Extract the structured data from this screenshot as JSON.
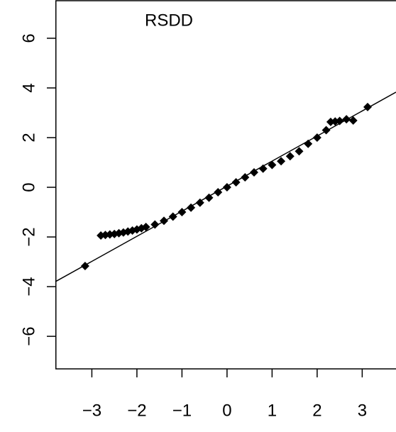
{
  "chart_data": {
    "type": "qq",
    "title": "RSDD",
    "color": "#000000",
    "x": [
      -3.15,
      -2.8,
      -2.7,
      -2.6,
      -2.5,
      -2.4,
      -2.3,
      -2.2,
      -2.1,
      -2.0,
      -1.9,
      -1.8,
      -1.6,
      -1.4,
      -1.2,
      -1.0,
      -0.8,
      -0.6,
      -0.4,
      -0.2,
      0,
      0.2,
      0.4,
      0.6,
      0.8,
      1.0,
      1.2,
      1.4,
      1.6,
      1.8,
      2.0,
      2.2,
      2.3,
      2.4,
      2.5,
      2.65,
      2.8,
      3.12
    ],
    "values": [
      -3.17,
      -1.94,
      -1.92,
      -1.9,
      -1.88,
      -1.85,
      -1.82,
      -1.78,
      -1.74,
      -1.7,
      -1.65,
      -1.6,
      -1.5,
      -1.35,
      -1.18,
      -1.0,
      -0.82,
      -0.62,
      -0.42,
      -0.2,
      0,
      0.2,
      0.4,
      0.6,
      0.75,
      0.9,
      1.05,
      1.25,
      1.45,
      1.75,
      2.0,
      2.3,
      2.63,
      2.65,
      2.67,
      2.74,
      2.69,
      3.23
    ],
    "reference_line": {
      "x": [
        -3.81,
        3.75
      ],
      "y": [
        -3.8,
        3.83
      ]
    },
    "xlim": [
      -3.81,
      3.75
    ],
    "ylim": [
      -7.31,
      7.54
    ],
    "xticks": [
      {
        "value": -3,
        "label": "−3"
      },
      {
        "value": -2,
        "label": "−2"
      },
      {
        "value": -1,
        "label": "−1"
      },
      0,
      1,
      2,
      3
    ],
    "yticks": [
      {
        "value": -6,
        "label": "−6"
      },
      {
        "value": -4,
        "label": "−4"
      },
      {
        "value": -2,
        "label": "−2"
      },
      0,
      2,
      4,
      6
    ]
  }
}
